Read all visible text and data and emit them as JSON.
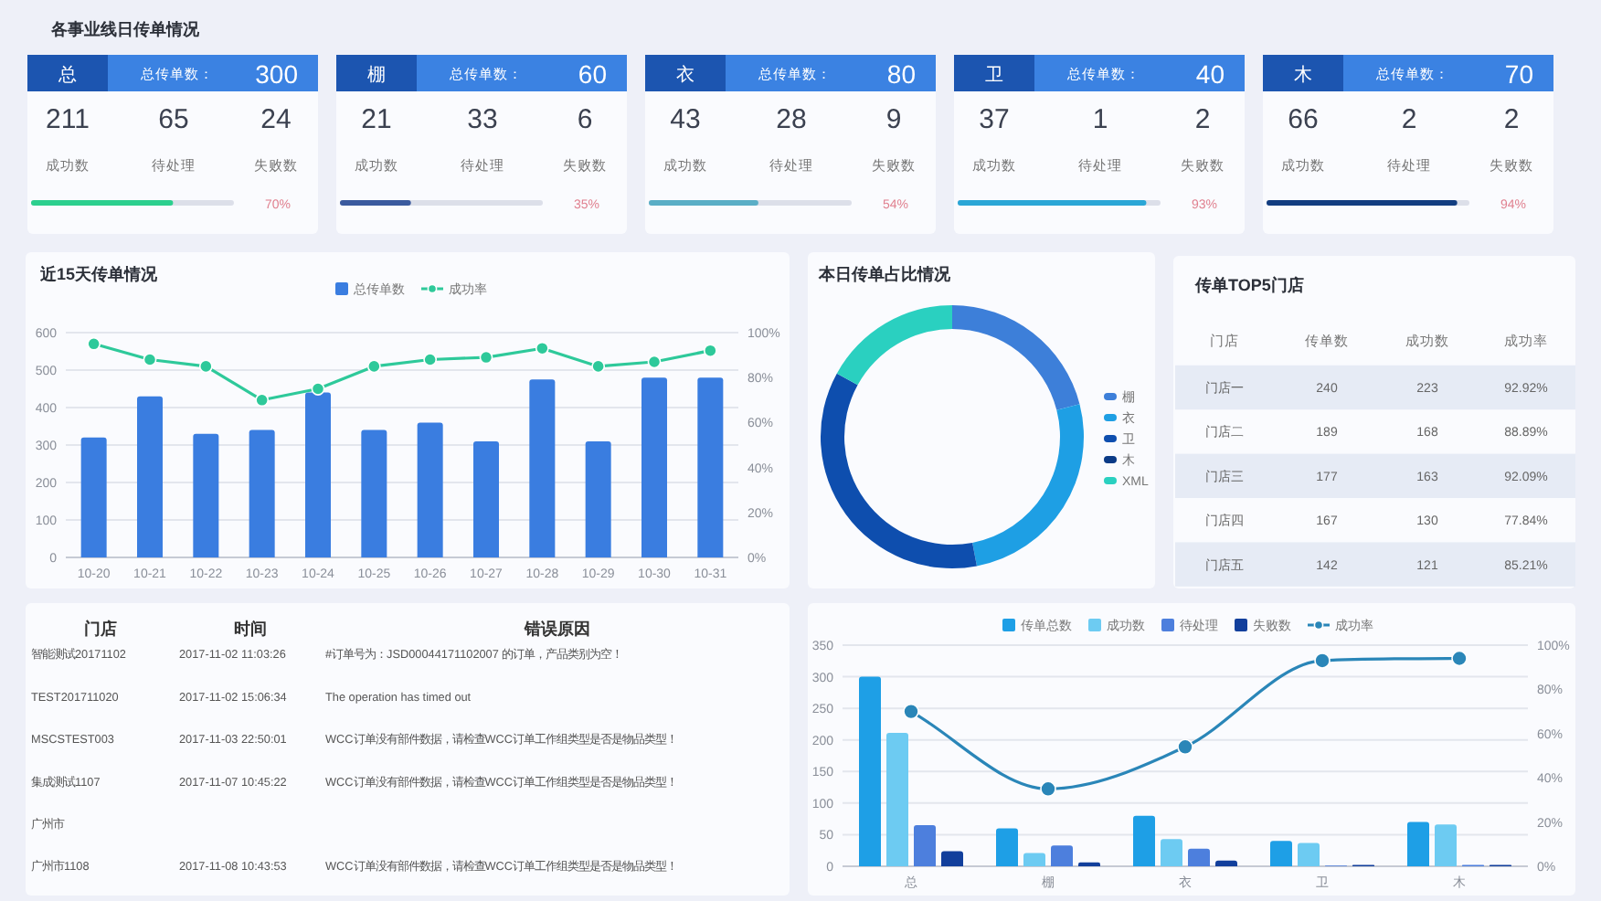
{
  "chart_data": [
    {
      "type": "other",
      "title": "各事业线日传单情况",
      "categories": [
        "总"
      ],
      "data_labels": true,
      "series": [
        {
          "name": "总传单数：",
          "values": [
            300
          ]
        },
        {
          "name": "成功数",
          "values": [
            211
          ]
        },
        {
          "name": "待处理",
          "values": [
            65
          ]
        },
        {
          "name": "失败数",
          "values": [
            24
          ]
        },
        {
          "type": "bar",
          "color": "#2ccf8e",
          "values": [
            70
          ],
          "value_labels": [
            "70%"
          ]
        }
      ]
    },
    {
      "type": "other",
      "categories": [
        "棚"
      ],
      "data_labels": true,
      "series": [
        {
          "name": "总传单数：",
          "values": [
            60
          ]
        },
        {
          "name": "成功数",
          "values": [
            21
          ]
        },
        {
          "name": "待处理",
          "values": [
            33
          ]
        },
        {
          "name": "失败数",
          "values": [
            6
          ]
        },
        {
          "type": "bar",
          "color": "#3a5a9e",
          "values": [
            35
          ],
          "value_labels": [
            "35%"
          ]
        }
      ]
    },
    {
      "type": "other",
      "categories": [
        "衣"
      ],
      "data_labels": true,
      "series": [
        {
          "name": "总传单数：",
          "values": [
            80
          ]
        },
        {
          "name": "成功数",
          "values": [
            43
          ]
        },
        {
          "name": "待处理",
          "values": [
            28
          ]
        },
        {
          "name": "失败数",
          "values": [
            9
          ]
        },
        {
          "type": "bar",
          "color": "#5aaec6",
          "values": [
            54
          ],
          "value_labels": [
            "54%"
          ]
        }
      ]
    },
    {
      "type": "other",
      "categories": [
        "卫"
      ],
      "data_labels": true,
      "series": [
        {
          "name": "总传单数：",
          "values": [
            40
          ]
        },
        {
          "name": "成功数",
          "values": [
            37
          ]
        },
        {
          "name": "待处理",
          "values": [
            1
          ]
        },
        {
          "name": "失败数",
          "values": [
            2
          ]
        },
        {
          "type": "bar",
          "color": "#2aa6d6",
          "values": [
            93
          ],
          "value_labels": [
            "93%"
          ]
        }
      ]
    },
    {
      "type": "other",
      "categories": [
        "木"
      ],
      "data_labels": true,
      "series": [
        {
          "name": "总传单数：",
          "values": [
            70
          ]
        },
        {
          "name": "成功数",
          "values": [
            66
          ]
        },
        {
          "name": "待处理",
          "values": [
            2
          ]
        },
        {
          "name": "失败数",
          "values": [
            2
          ]
        },
        {
          "type": "bar",
          "color": "#123d80",
          "values": [
            94
          ],
          "value_labels": [
            "94%"
          ]
        }
      ]
    },
    {
      "type": "bar",
      "title": "近15天传单情况",
      "categories": [
        "10-20",
        "10-21",
        "10-22",
        "10-23",
        "10-24",
        "10-25",
        "10-26",
        "10-27",
        "10-28",
        "10-29",
        "10-30",
        "10-31"
      ],
      "series": [
        {
          "name": "总传单数",
          "color": "#3a7de0",
          "values": [
            320,
            430,
            330,
            340,
            440,
            340,
            360,
            310,
            475,
            310,
            480,
            480
          ]
        },
        {
          "name": "成功率",
          "type": "line",
          "axis": "y2",
          "color": "#2ec99a",
          "values": [
            95,
            88,
            85,
            70,
            75,
            85,
            88,
            89,
            93,
            85,
            87,
            92
          ]
        }
      ],
      "ylim": [
        0,
        600
      ],
      "yticks": [
        0,
        100,
        200,
        300,
        400,
        500,
        600
      ],
      "y2lim": [
        0,
        100
      ],
      "y2ticks": [
        {
          "value": 0,
          "label": "0%"
        },
        {
          "value": 20,
          "label": "20%"
        },
        {
          "value": 40,
          "label": "40%"
        },
        {
          "value": 60,
          "label": "60%"
        },
        {
          "value": 80,
          "label": "80%"
        },
        {
          "value": 100,
          "label": "100%"
        }
      ],
      "grid": "y",
      "legend": "top",
      "marker": "circle"
    },
    {
      "type": "donut",
      "title": "本日传单占比情况",
      "categories": [
        "棚",
        "衣",
        "卫",
        "木",
        "XML"
      ],
      "values": [
        21,
        26,
        36,
        0,
        17
      ],
      "colors": [
        "#3d7fd9",
        "#1e9fe4",
        "#0e4eae",
        "#0a3a86",
        "#2ad0c0"
      ],
      "legend": "right"
    },
    {
      "type": "other",
      "title": "传单TOP5门店",
      "categories": [
        "门店",
        "传单数",
        "成功数",
        "成功率"
      ],
      "y_categories": [
        "门店一",
        "门店二",
        "门店三",
        "门店四",
        "门店五"
      ],
      "cell_labels": [
        [
          "240",
          "223",
          "92.92%"
        ],
        [
          "189",
          "168",
          "88.89%"
        ],
        [
          "177",
          "163",
          "92.09%"
        ],
        [
          "167",
          "130",
          "77.84%"
        ],
        [
          "142",
          "121",
          "85.21%"
        ]
      ]
    },
    {
      "type": "other",
      "categories": [
        "门店",
        "时间",
        "错误原因"
      ],
      "y_categories": [
        "智能测试20171102",
        "TEST201711020",
        "MSCSTEST003",
        "集成测试1107",
        "广州市",
        "广州市1108"
      ],
      "cell_labels": [
        [
          "2017-11-02 11:03:26",
          "#订单号为：JSD00044171102007 的订单，产品类别为空！"
        ],
        [
          "2017-11-02 15:06:34",
          "The operation has timed out"
        ],
        [
          "2017-11-03 22:50:01",
          "WCC订单没有部件数据，请检查WCC订单工作组类型是否是物品类型！"
        ],
        [
          "2017-11-07 10:45:22",
          "WCC订单没有部件数据，请检查WCC订单工作组类型是否是物品类型！"
        ],
        [
          null,
          null
        ],
        [
          "2017-11-08 10:43:53",
          "WCC订单没有部件数据，请检查WCC订单工作组类型是否是物品类型！"
        ]
      ]
    },
    {
      "type": "bar",
      "categories": [
        "总",
        "棚",
        "衣",
        "卫",
        "木"
      ],
      "series": [
        {
          "name": "传单总数",
          "color": "#1e9fe6",
          "values": [
            300,
            60,
            80,
            40,
            70
          ]
        },
        {
          "name": "成功数",
          "color": "#6dcbf2",
          "values": [
            211,
            21,
            43,
            37,
            66
          ]
        },
        {
          "name": "待处理",
          "color": "#4d7fdd",
          "values": [
            65,
            33,
            28,
            1,
            2
          ]
        },
        {
          "name": "失败数",
          "color": "#123f9c",
          "values": [
            24,
            6,
            9,
            2,
            2
          ]
        },
        {
          "name": "成功率",
          "type": "line",
          "axis": "y2",
          "color": "#2a86b8",
          "values": [
            70,
            35,
            54,
            93,
            94
          ]
        }
      ],
      "ylim": [
        0,
        350
      ],
      "yticks": [
        0,
        50,
        100,
        150,
        200,
        250,
        300,
        350
      ],
      "y2lim": [
        0,
        100
      ],
      "y2ticks": [
        {
          "value": 0,
          "label": "0%"
        },
        {
          "value": 20,
          "label": "20%"
        },
        {
          "value": 40,
          "label": "40%"
        },
        {
          "value": 60,
          "label": "60%"
        },
        {
          "value": 80,
          "label": "80%"
        },
        {
          "value": 100,
          "label": "100%"
        }
      ],
      "grid": "y",
      "legend": "top",
      "marker": "circle"
    }
  ]
}
